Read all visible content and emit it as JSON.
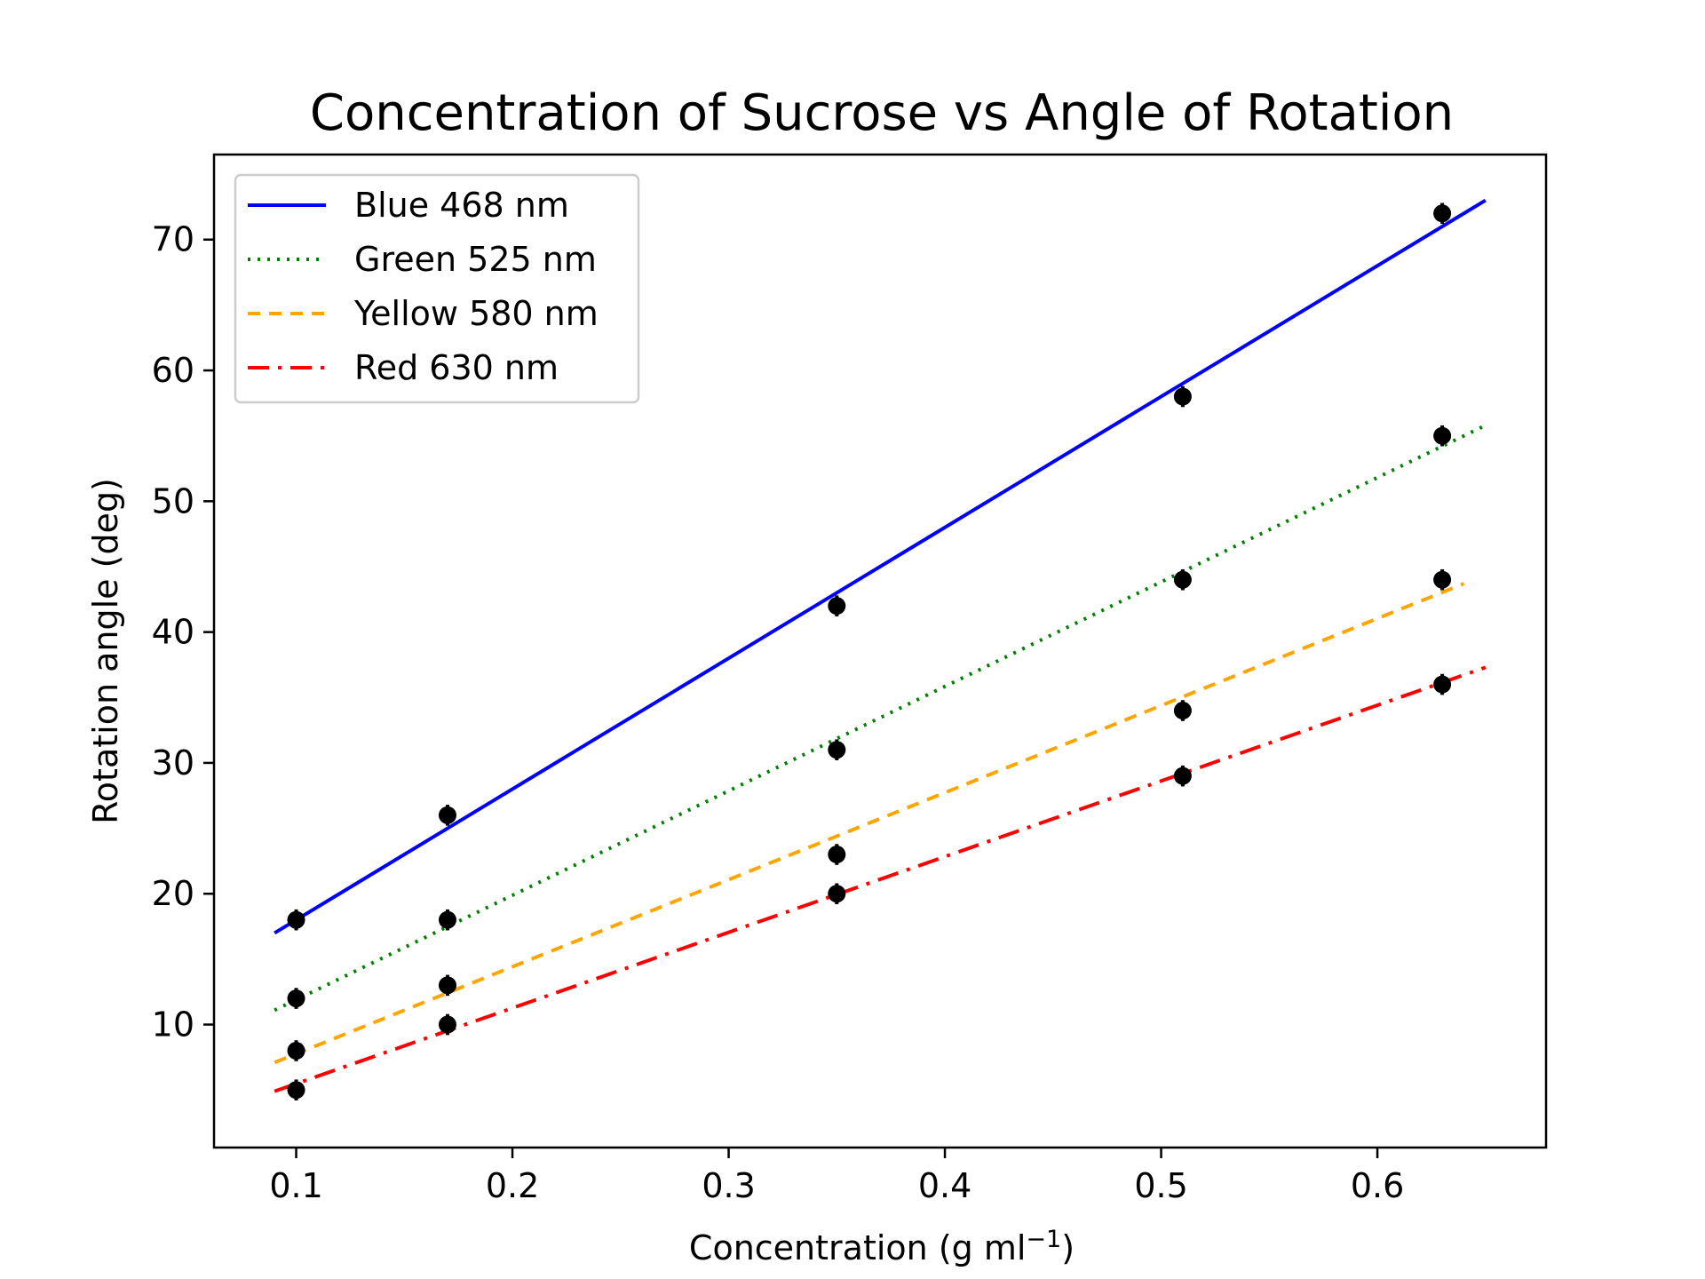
{
  "chart_data": {
    "type": "scatter",
    "title": "Concentration of Sucrose vs Angle of Rotation",
    "xlabel": "Concentration (g ml",
    "xlabel_sup": "−1",
    "xlabel_suffix": ")",
    "ylabel": "Rotation angle (deg)",
    "xlim": [
      0.062,
      0.678
    ],
    "ylim": [
      0.6,
      76.5
    ],
    "x_ticks": [
      0.1,
      0.2,
      0.3,
      0.4,
      0.5,
      0.6
    ],
    "x_tick_labels": [
      "0.1",
      "0.2",
      "0.3",
      "0.4",
      "0.5",
      "0.6"
    ],
    "y_ticks": [
      10,
      20,
      30,
      40,
      50,
      60,
      70
    ],
    "y_tick_labels": [
      "10",
      "20",
      "30",
      "40",
      "50",
      "60",
      "70"
    ],
    "grid": false,
    "legend_position": "upper-left",
    "points": {
      "x": [
        0.1,
        0.17,
        0.35,
        0.51,
        0.63
      ],
      "yerr": 0.8,
      "color": "#000000",
      "series": [
        {
          "y": [
            18,
            26,
            42,
            58,
            72
          ]
        },
        {
          "y": [
            12,
            18,
            31,
            44,
            55
          ]
        },
        {
          "y": [
            8,
            13,
            23,
            34,
            44
          ]
        },
        {
          "y": [
            5,
            10,
            20,
            29,
            36
          ]
        }
      ]
    },
    "series": [
      {
        "name": "Blue 468 nm",
        "color": "#0000ff",
        "style": "solid",
        "x": [
          0.09,
          0.65
        ],
        "y": [
          17.0,
          73.0
        ]
      },
      {
        "name": "Green 525 nm",
        "color": "#008000",
        "style": "dotted",
        "x": [
          0.09,
          0.65
        ],
        "y": [
          11.1,
          55.8
        ]
      },
      {
        "name": "Yellow 580 nm",
        "color": "#ffa500",
        "style": "dashed",
        "x": [
          0.09,
          0.64
        ],
        "y": [
          7.1,
          43.7
        ]
      },
      {
        "name": "Red 630 nm",
        "color": "#ff0000",
        "style": "dashdot",
        "x": [
          0.09,
          0.65
        ],
        "y": [
          4.9,
          37.3
        ]
      }
    ]
  }
}
